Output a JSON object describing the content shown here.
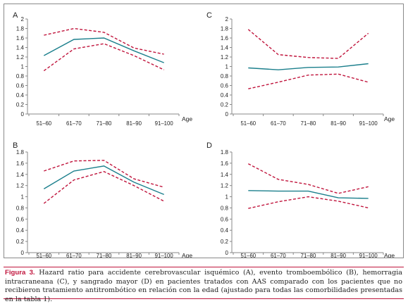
{
  "chart_data": [
    {
      "type": "line",
      "panel_label": "A",
      "categories": [
        "51–60",
        "61–70",
        "71–80",
        "81–90",
        "91–100"
      ],
      "xlabel": "Age",
      "ylim": [
        0,
        2
      ],
      "yticks": [
        "0",
        "0.2",
        "0.4",
        "0.6",
        "0.8",
        "1",
        "1.2",
        "1.4",
        "1.6",
        "1.8",
        "2"
      ],
      "grid": false,
      "series": [
        {
          "role": "estimate",
          "color": "#1b7f8c",
          "dash": "solid",
          "values": [
            1.23,
            1.57,
            1.6,
            1.33,
            1.08
          ]
        },
        {
          "role": "upper",
          "color": "#c0143c",
          "dash": "dashed",
          "values": [
            1.66,
            1.8,
            1.72,
            1.39,
            1.26
          ]
        },
        {
          "role": "lower",
          "color": "#c0143c",
          "dash": "dashed",
          "values": [
            0.91,
            1.37,
            1.48,
            1.23,
            0.93
          ]
        }
      ]
    },
    {
      "type": "line",
      "panel_label": "C",
      "categories": [
        "51–60",
        "61–70",
        "71–80",
        "81–90",
        "91–100"
      ],
      "xlabel": "Age",
      "ylim": [
        0,
        2
      ],
      "yticks": [
        "0",
        "0.2",
        "0.4",
        "0.6",
        "0.8",
        "1",
        "1.2",
        "1.4",
        "1.6",
        "1.8",
        "2"
      ],
      "grid": false,
      "series": [
        {
          "role": "estimate",
          "color": "#1b7f8c",
          "dash": "solid",
          "values": [
            0.97,
            0.93,
            0.98,
            0.99,
            1.06
          ]
        },
        {
          "role": "upper",
          "color": "#c0143c",
          "dash": "dashed",
          "values": [
            1.78,
            1.25,
            1.19,
            1.17,
            1.7
          ]
        },
        {
          "role": "lower",
          "color": "#c0143c",
          "dash": "dashed",
          "values": [
            0.53,
            0.67,
            0.82,
            0.84,
            0.67
          ]
        }
      ]
    },
    {
      "type": "line",
      "panel_label": "B",
      "categories": [
        "51–60",
        "61–70",
        "71–80",
        "81–90",
        "91–100"
      ],
      "xlabel": "Age",
      "ylim": [
        0,
        1.8
      ],
      "yticks": [
        "0",
        "0.2",
        "0.4",
        "0.6",
        "0.8",
        "1",
        "1.2",
        "1.4",
        "1.6",
        "1.8"
      ],
      "grid": false,
      "series": [
        {
          "role": "estimate",
          "color": "#1b7f8c",
          "dash": "solid",
          "values": [
            1.14,
            1.46,
            1.55,
            1.26,
            1.04
          ]
        },
        {
          "role": "upper",
          "color": "#c0143c",
          "dash": "dashed",
          "values": [
            1.46,
            1.64,
            1.65,
            1.32,
            1.17
          ]
        },
        {
          "role": "lower",
          "color": "#c0143c",
          "dash": "dashed",
          "values": [
            0.88,
            1.3,
            1.45,
            1.2,
            0.92
          ]
        }
      ]
    },
    {
      "type": "line",
      "panel_label": "D",
      "categories": [
        "51–60",
        "61–70",
        "71–80",
        "81–90",
        "91–100"
      ],
      "xlabel": "Age",
      "ylim": [
        0,
        1.8
      ],
      "yticks": [
        "0",
        "0.2",
        "0.4",
        "0.6",
        "0.8",
        "1",
        "1.2",
        "1.4",
        "1.6",
        "1.8"
      ],
      "grid": false,
      "series": [
        {
          "role": "estimate",
          "color": "#1b7f8c",
          "dash": "solid",
          "values": [
            1.11,
            1.1,
            1.1,
            0.98,
            0.97
          ]
        },
        {
          "role": "upper",
          "color": "#c0143c",
          "dash": "dashed",
          "values": [
            1.59,
            1.31,
            1.22,
            1.06,
            1.18
          ]
        },
        {
          "role": "lower",
          "color": "#c0143c",
          "dash": "dashed",
          "values": [
            0.79,
            0.91,
            1.0,
            0.92,
            0.8
          ]
        }
      ]
    }
  ],
  "caption": {
    "label": "Figura 3.",
    "text": "Hazard ratio para accidente cerebrovascular isquémico (A), evento tromboembólico (B), hemorragia intracraneana (C), y sangrado mayor (D) en pacientes tratados con AAS comparado con los pacientes que no recibieron tratamiento antitrombótico en relación con la edad (ajustado para todas las comorbilidades presentadas en la tabla 1)."
  }
}
